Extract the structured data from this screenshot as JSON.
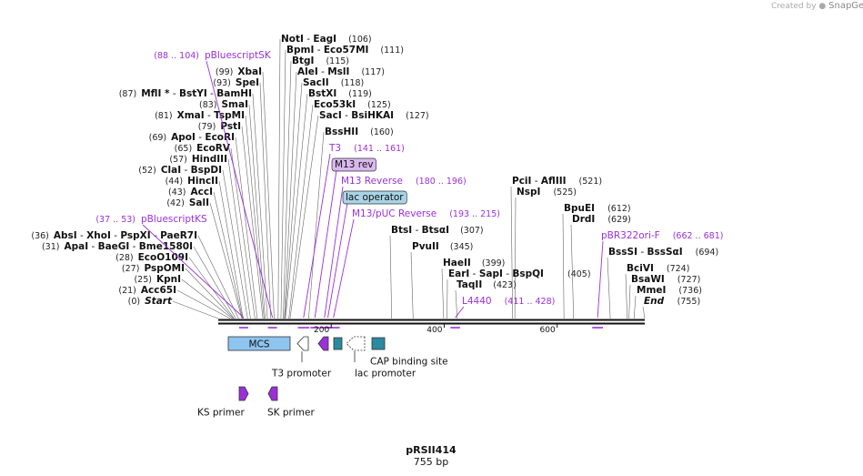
{
  "credit": {
    "prefix": "Created by",
    "brand": "SnapGene"
  },
  "map": {
    "name": "pRSII414",
    "length_label": "755 bp",
    "total_bp": 755
  },
  "axis": {
    "ticks": [
      {
        "label": "200",
        "bp": 200
      },
      {
        "label": "400",
        "bp": 400
      },
      {
        "label": "600",
        "bp": 600
      }
    ]
  },
  "left_sites": [
    {
      "parts": [
        {
          "t": "Start",
          "bold": true,
          "italic": true
        }
      ],
      "pos": "(0)",
      "bp": 0
    },
    {
      "parts": [
        {
          "t": "Acc65I",
          "bold": true
        }
      ],
      "pos": "(21)",
      "bp": 21
    },
    {
      "parts": [
        {
          "t": "KpnI",
          "bold": true
        }
      ],
      "pos": "(25)",
      "bp": 25
    },
    {
      "parts": [
        {
          "t": "PspOMI",
          "bold": true
        }
      ],
      "pos": "(27)",
      "bp": 27
    },
    {
      "parts": [
        {
          "t": "EcoO109I",
          "bold": true
        }
      ],
      "pos": "(28)",
      "bp": 28
    },
    {
      "parts": [
        {
          "t": "ApaI",
          "bold": true
        },
        {
          "t": " - ",
          "bold": false
        },
        {
          "t": "BaeGI",
          "bold": true
        },
        {
          "t": " - ",
          "bold": false
        },
        {
          "t": "Bme1580I",
          "bold": true
        }
      ],
      "pos": "(31)",
      "bp": 31
    },
    {
      "parts": [
        {
          "t": "AbsI",
          "bold": true
        },
        {
          "t": " - ",
          "bold": false
        },
        {
          "t": "XhoI",
          "bold": true
        },
        {
          "t": " - ",
          "bold": false
        },
        {
          "t": "PspXI",
          "bold": true
        },
        {
          "t": " - ",
          "bold": false
        },
        {
          "t": "PaeR7I",
          "bold": true
        }
      ],
      "pos": "(36)",
      "bp": 36
    },
    {
      "parts": [
        {
          "t": "SalI",
          "bold": true
        }
      ],
      "pos": "(42)",
      "bp": 42
    },
    {
      "parts": [
        {
          "t": "AccI",
          "bold": true
        }
      ],
      "pos": "(43)",
      "bp": 43
    },
    {
      "parts": [
        {
          "t": "HincII",
          "bold": true
        }
      ],
      "pos": "(44)",
      "bp": 44
    },
    {
      "parts": [
        {
          "t": "ClaI",
          "bold": true
        },
        {
          "t": " - ",
          "bold": false
        },
        {
          "t": "BspDI",
          "bold": true
        }
      ],
      "pos": "(52)",
      "bp": 52
    },
    {
      "parts": [
        {
          "t": "HindIII",
          "bold": true
        }
      ],
      "pos": "(57)",
      "bp": 57
    },
    {
      "parts": [
        {
          "t": "EcoRV",
          "bold": true
        }
      ],
      "pos": "(65)",
      "bp": 65
    },
    {
      "parts": [
        {
          "t": "ApoI",
          "bold": true
        },
        {
          "t": " - ",
          "bold": false
        },
        {
          "t": "EcoRI",
          "bold": true
        }
      ],
      "pos": "(69)",
      "bp": 69
    },
    {
      "parts": [
        {
          "t": "PstI",
          "bold": true
        }
      ],
      "pos": "(79)",
      "bp": 79
    },
    {
      "parts": [
        {
          "t": "XmaI",
          "bold": true
        },
        {
          "t": " - ",
          "bold": false
        },
        {
          "t": "TspMI",
          "bold": true
        }
      ],
      "pos": "(81)",
      "bp": 81
    },
    {
      "parts": [
        {
          "t": "SmaI",
          "bold": true
        }
      ],
      "pos": "(83)",
      "bp": 83
    },
    {
      "parts": [
        {
          "t": "MflI *",
          "bold": true
        },
        {
          "t": " - ",
          "bold": false
        },
        {
          "t": "BstYI",
          "bold": true
        },
        {
          "t": " - ",
          "bold": false
        },
        {
          "t": "BamHI",
          "bold": true
        }
      ],
      "pos": "(87)",
      "bp": 87
    },
    {
      "parts": [
        {
          "t": "SpeI",
          "bold": true
        }
      ],
      "pos": "(93)",
      "bp": 93
    },
    {
      "parts": [
        {
          "t": "XbaI",
          "bold": true
        }
      ],
      "pos": "(99)",
      "bp": 99
    }
  ],
  "upper_sites": [
    {
      "parts": [
        {
          "t": "NotI",
          "bold": true
        },
        {
          "t": " - ",
          "bold": false
        },
        {
          "t": "EagI",
          "bold": true
        }
      ],
      "pos": "(106)",
      "bp": 106
    },
    {
      "parts": [
        {
          "t": "BpmI",
          "bold": true
        },
        {
          "t": " - ",
          "bold": false
        },
        {
          "t": "Eco57MI",
          "bold": true
        }
      ],
      "pos": "(111)",
      "bp": 111
    },
    {
      "parts": [
        {
          "t": "BtgI",
          "bold": true
        }
      ],
      "pos": "(115)",
      "bp": 115
    },
    {
      "parts": [
        {
          "t": "AleI",
          "bold": true
        },
        {
          "t": " - ",
          "bold": false
        },
        {
          "t": "MslI",
          "bold": true
        }
      ],
      "pos": "(117)",
      "bp": 117
    },
    {
      "parts": [
        {
          "t": "SacII",
          "bold": true
        }
      ],
      "pos": "(118)",
      "bp": 118
    },
    {
      "parts": [
        {
          "t": "BstXI",
          "bold": true
        }
      ],
      "pos": "(119)",
      "bp": 119
    },
    {
      "parts": [
        {
          "t": "Eco53kI",
          "bold": true
        }
      ],
      "pos": "(125)",
      "bp": 125
    },
    {
      "parts": [
        {
          "t": "SacI",
          "bold": true
        },
        {
          "t": " - ",
          "bold": false
        },
        {
          "t": "BsiHKAI",
          "bold": true
        }
      ],
      "pos": "(127)",
      "bp": 127
    },
    {
      "parts": [
        {
          "t": "BssHII",
          "bold": true
        }
      ],
      "pos": "(160)",
      "bp": 160
    }
  ],
  "middle_sites": [
    {
      "parts": [
        {
          "t": "BtsI",
          "bold": true
        },
        {
          "t": " - ",
          "bold": false
        },
        {
          "t": "BtsαI",
          "bold": true
        }
      ],
      "pos": "(307)",
      "bp": 307
    },
    {
      "parts": [
        {
          "t": "PvuII",
          "bold": true
        }
      ],
      "pos": "(345)",
      "bp": 345
    },
    {
      "parts": [
        {
          "t": "HaeII",
          "bold": true
        }
      ],
      "pos": "(399)",
      "bp": 399
    },
    {
      "parts": [
        {
          "t": "EarI",
          "bold": true
        },
        {
          "t": " - ",
          "bold": false
        },
        {
          "t": "SapI",
          "bold": true
        },
        {
          "t": " - ",
          "bold": false
        },
        {
          "t": "BspQI",
          "bold": true
        }
      ],
      "pos": "(405)",
      "bp": 405
    },
    {
      "parts": [
        {
          "t": "TaqII",
          "bold": true
        }
      ],
      "pos": "(423)",
      "bp": 423
    }
  ],
  "right_sites": [
    {
      "parts": [
        {
          "t": "PciI",
          "bold": true
        },
        {
          "t": " - ",
          "bold": false
        },
        {
          "t": "AflIII",
          "bold": true
        }
      ],
      "pos": "(521)",
      "bp": 521
    },
    {
      "parts": [
        {
          "t": "NspI",
          "bold": true
        }
      ],
      "pos": "(525)",
      "bp": 525
    },
    {
      "parts": [
        {
          "t": "BpuEI",
          "bold": true
        }
      ],
      "pos": "(612)",
      "bp": 612
    },
    {
      "parts": [
        {
          "t": "DrdI",
          "bold": true
        }
      ],
      "pos": "(629)",
      "bp": 629
    },
    {
      "parts": [
        {
          "t": "BssSI",
          "bold": true
        },
        {
          "t": " - ",
          "bold": false
        },
        {
          "t": "BssSαI",
          "bold": true
        }
      ],
      "pos": "(694)",
      "bp": 694
    },
    {
      "parts": [
        {
          "t": "BciVI",
          "bold": true
        }
      ],
      "pos": "(724)",
      "bp": 724
    },
    {
      "parts": [
        {
          "t": "BsaWI",
          "bold": true
        }
      ],
      "pos": "(727)",
      "bp": 727
    },
    {
      "parts": [
        {
          "t": "MmeI",
          "bold": true
        }
      ],
      "pos": "(736)",
      "bp": 736
    },
    {
      "parts": [
        {
          "t": "End",
          "bold": true,
          "italic": true
        }
      ],
      "pos": "(755)",
      "bp": 755
    }
  ],
  "primers": [
    {
      "name": "pBluescriptSK",
      "range": "(88 .. 104)",
      "bp_start": 88,
      "bp_end": 104
    },
    {
      "name": "pBluescriptKS",
      "range": "(37 .. 53)",
      "bp_start": 37,
      "bp_end": 53
    },
    {
      "name": "T3",
      "range": "(141 .. 161)",
      "bp_start": 141,
      "bp_end": 161
    },
    {
      "name": "M13 rev",
      "range": "",
      "bp_start": 163,
      "bp_end": 179
    },
    {
      "name": "M13 Reverse",
      "range": "(180 .. 196)",
      "bp_start": 180,
      "bp_end": 196
    },
    {
      "name": "lac operator",
      "range": "",
      "bp_start": 186,
      "bp_end": 202
    },
    {
      "name": "M13/pUC Reverse",
      "range": "(193 .. 215)",
      "bp_start": 193,
      "bp_end": 215
    },
    {
      "name": "L4440",
      "range": "(411 .. 428)",
      "bp_start": 411,
      "bp_end": 428
    },
    {
      "name": "pBR322ori-F",
      "range": "(662 .. 681)",
      "bp_start": 662,
      "bp_end": 681
    }
  ],
  "features": [
    {
      "name": "MCS",
      "kind": "box",
      "color": "#8ec4f0"
    },
    {
      "name": "T3 promoter",
      "kind": "arrow-left-open",
      "color": "#ffffff"
    },
    {
      "name": "",
      "kind": "arrow-left",
      "color": "#9b30d9"
    },
    {
      "name": "",
      "kind": "box",
      "color": "#2a8aa0"
    },
    {
      "name": "lac promoter",
      "kind": "arrow-left-open",
      "color": "#ffffff"
    },
    {
      "name": "CAP binding site",
      "kind": "box",
      "color": "#2a8aa0"
    }
  ],
  "primer_features": [
    {
      "name": "KS primer",
      "direction": "right",
      "color": "#9b30d9"
    },
    {
      "name": "SK primer",
      "direction": "left",
      "color": "#9b30d9"
    }
  ],
  "colors": {
    "primer": "#9b30d9",
    "feature_blue": "#8ec4f0",
    "feature_teal": "#2a8aa0",
    "highlight": "#d9b8ee",
    "lac_box": "#a8d4e6",
    "backbone": "#111111"
  }
}
